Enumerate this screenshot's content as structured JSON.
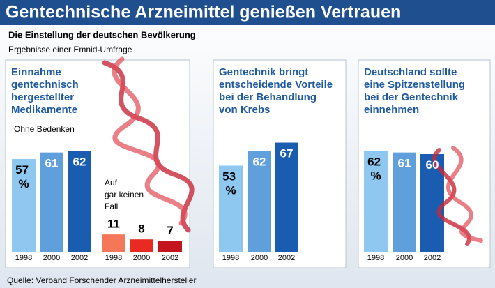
{
  "header": {
    "title": "Gentechnische Arzneimittel genießen Vertrauen",
    "subtitle": "Die Einstellung der deutschen Bevölkerung",
    "note": "Ergebnisse einer Emnid-Umfrage"
  },
  "chart_data": [
    {
      "type": "bar",
      "title_lines": [
        "Einnahme",
        "gentechnisch",
        "hergestellter",
        "Medikamente"
      ],
      "categories": [
        "1998",
        "2000",
        "2002"
      ],
      "ylim": [
        0,
        100
      ],
      "series": [
        {
          "name_lines": [
            "Ohne Bedenken"
          ],
          "colors": [
            "#8ec8f0",
            "#5f9fdc",
            "#1a5cb0"
          ],
          "values": [
            57,
            61,
            62
          ],
          "value_labels": [
            "57 %",
            "61",
            "62"
          ]
        },
        {
          "name_lines": [
            "Auf",
            "gar keinen",
            "Fall"
          ],
          "colors": [
            "#f4775a",
            "#e92a22",
            "#c4151f"
          ],
          "values": [
            11,
            8,
            7
          ]
        }
      ]
    },
    {
      "type": "bar",
      "title_lines": [
        "Gentechnik bringt",
        "entscheidende Vorteile",
        "bei der Behandlung",
        "von Krebs"
      ],
      "categories": [
        "1998",
        "2000",
        "2002"
      ],
      "ylim": [
        0,
        100
      ],
      "series": [
        {
          "colors": [
            "#8ec8f0",
            "#5f9fdc",
            "#1a5cb0"
          ],
          "values": [
            53,
            62,
            67
          ],
          "value_labels": [
            "53 %",
            "62",
            "67"
          ]
        }
      ]
    },
    {
      "type": "bar",
      "title_lines": [
        "Deutschland sollte",
        "eine Spitzenstellung",
        "bei der Gentechnik",
        "einnehmen"
      ],
      "categories": [
        "1998",
        "2000",
        "2002"
      ],
      "ylim": [
        0,
        100
      ],
      "series": [
        {
          "colors": [
            "#8ec8f0",
            "#5f9fdc",
            "#1a5cb0"
          ],
          "values": [
            62,
            61,
            60
          ],
          "value_labels": [
            "62 %",
            "61",
            "60"
          ]
        }
      ]
    }
  ],
  "source": "Quelle: Verband Forschender Arzneimittelhersteller"
}
